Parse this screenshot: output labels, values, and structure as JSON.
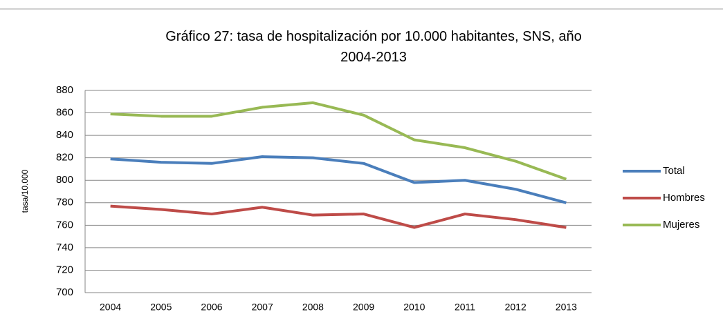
{
  "chart_data": {
    "type": "line",
    "title": "Gráfico 27: tasa de hospitalización por 10.000 habitantes, SNS, año 2004-2013",
    "ylabel": "tasa/10.000",
    "categories": [
      "2004",
      "2005",
      "2006",
      "2007",
      "2008",
      "2009",
      "2010",
      "2011",
      "2012",
      "2013"
    ],
    "series": [
      {
        "name": "Total",
        "color": "#4a7ebb",
        "values": [
          819,
          816,
          815,
          821,
          820,
          815,
          798,
          800,
          792,
          780
        ]
      },
      {
        "name": "Hombres",
        "color": "#be4b48",
        "values": [
          777,
          774,
          770,
          776,
          769,
          770,
          758,
          770,
          765,
          758
        ]
      },
      {
        "name": "Mujeres",
        "color": "#98b954",
        "values": [
          859,
          857,
          857,
          865,
          869,
          858,
          836,
          829,
          817,
          801
        ]
      }
    ],
    "ylim": [
      700,
      880
    ],
    "yticks": [
      700,
      720,
      740,
      760,
      780,
      800,
      820,
      840,
      860,
      880
    ],
    "grid": true,
    "legend": "right"
  }
}
